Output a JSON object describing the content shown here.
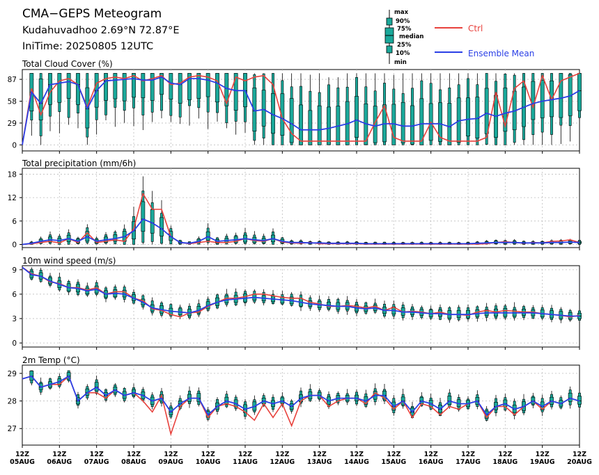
{
  "header": {
    "title": "CMA−GEPS Meteogram",
    "location": "Kudahuvadhoo 2.69°N 72.87°E",
    "init_time": "IniTime: 20250805 12UTC"
  },
  "legend": {
    "box_labels": [
      "max",
      "90%",
      "75%",
      "median",
      "25%",
      "10%",
      "min"
    ],
    "ctrl_label": "Ctrl",
    "mean_label": "Ensemble Mean",
    "ctrl_color": "#e8413c",
    "mean_color": "#2a3fe6",
    "box_color": "#1aa89a"
  },
  "time_axis": {
    "steps": 61,
    "step_hours": 3,
    "tick_labels": [
      [
        "12Z",
        "05AUG"
      ],
      [
        "12Z",
        "06AUG"
      ],
      [
        "12Z",
        "07AUG"
      ],
      [
        "12Z",
        "08AUG"
      ],
      [
        "12Z",
        "09AUG"
      ],
      [
        "12Z",
        "10AUG"
      ],
      [
        "12Z",
        "11AUG"
      ],
      [
        "12Z",
        "12AUG"
      ],
      [
        "12Z",
        "13AUG"
      ],
      [
        "12Z",
        "14AUG"
      ],
      [
        "12Z",
        "15AUG"
      ],
      [
        "12Z",
        "16AUG"
      ],
      [
        "12Z",
        "17AUG"
      ],
      [
        "12Z",
        "18AUG"
      ],
      [
        "12Z",
        "19AUG"
      ],
      [
        "12Z",
        "20AUG"
      ]
    ]
  },
  "chart_data": [
    {
      "type": "line",
      "title": "Total Cloud Cover (%)",
      "ylim": [
        -8,
        100
      ],
      "yticks": [
        0,
        29,
        58,
        87
      ],
      "grid": true,
      "x": "3-hourly steps from 20250805 12UTC to 20250820 12UTC",
      "series": [
        {
          "name": "Ctrl",
          "values": [
            0,
            75,
            40,
            70,
            85,
            88,
            80,
            50,
            82,
            88,
            90,
            88,
            92,
            85,
            88,
            92,
            80,
            82,
            90,
            92,
            90,
            85,
            55,
            90,
            85,
            90,
            92,
            80,
            35,
            15,
            5,
            5,
            5,
            5,
            5,
            5,
            5,
            5,
            30,
            52,
            10,
            5,
            5,
            5,
            30,
            10,
            5,
            5,
            5,
            5,
            10,
            70,
            25,
            75,
            85,
            50,
            92,
            60,
            85,
            90,
            95
          ]
        },
        {
          "name": "Ensemble Mean",
          "values": [
            0,
            70,
            55,
            80,
            82,
            84,
            80,
            48,
            72,
            85,
            86,
            87,
            88,
            86,
            86,
            90,
            82,
            80,
            88,
            88,
            86,
            82,
            75,
            72,
            72,
            45,
            47,
            40,
            35,
            28,
            20,
            20,
            20,
            22,
            25,
            28,
            33,
            28,
            25,
            28,
            28,
            25,
            25,
            28,
            28,
            28,
            24,
            32,
            34,
            35,
            42,
            38,
            42,
            45,
            50,
            55,
            58,
            60,
            62,
            65,
            72
          ]
        }
      ],
      "boxes_percentiles": [
        "min",
        "10%",
        "25%",
        "median",
        "75%",
        "90%",
        "max"
      ]
    },
    {
      "type": "line",
      "title": "Total precipitation (mm/6h)",
      "ylim": [
        -0.8,
        19.5
      ],
      "yticks": [
        0,
        6,
        12,
        18
      ],
      "grid": true,
      "series": [
        {
          "name": "Ctrl",
          "values": [
            0,
            0.2,
            0.5,
            0.8,
            0.4,
            1.5,
            0.5,
            3,
            0.5,
            0.8,
            1.2,
            0.8,
            4,
            13,
            9,
            9,
            2,
            0.5,
            0.2,
            0.5,
            0.8,
            0.5,
            0.5,
            0.8,
            1.5,
            1,
            0.8,
            1.5,
            0.6,
            0.4,
            0.3,
            0.5,
            0.2,
            0.2,
            0.2,
            0.2,
            0.2,
            0.1,
            0.1,
            0.1,
            0.1,
            0.1,
            0.1,
            0.1,
            0.1,
            0.1,
            0.1,
            0.1,
            0.1,
            0.1,
            0.2,
            0.5,
            0.7,
            0.5,
            0.3,
            0.5,
            0.4,
            0.8,
            0.9,
            1.2,
            0.5
          ]
        },
        {
          "name": "Ensemble Mean",
          "values": [
            0,
            0.3,
            0.8,
            1.2,
            1.0,
            1.5,
            0.8,
            2,
            0.8,
            1.2,
            1.5,
            2,
            3.5,
            6.5,
            5.5,
            4,
            2,
            0.5,
            0.3,
            0.8,
            2,
            0.8,
            1,
            1.2,
            1.5,
            1.2,
            1,
            1.5,
            0.8,
            0.5,
            0.5,
            0.4,
            0.4,
            0.3,
            0.3,
            0.3,
            0.3,
            0.2,
            0.2,
            0.2,
            0.2,
            0.2,
            0.2,
            0.2,
            0.2,
            0.2,
            0.2,
            0.2,
            0.2,
            0.3,
            0.4,
            0.5,
            0.5,
            0.5,
            0.4,
            0.4,
            0.4,
            0.5,
            0.5,
            0.6,
            0.5
          ]
        }
      ]
    },
    {
      "type": "line",
      "title": "10m wind speed (m/s)",
      "ylim": [
        -0.5,
        9.5
      ],
      "yticks": [
        0,
        3,
        6,
        9
      ],
      "grid": true,
      "series": [
        {
          "name": "Ctrl",
          "values": [
            9.3,
            8.5,
            8.2,
            7.5,
            7.3,
            6.8,
            6.8,
            6.5,
            6.8,
            6.0,
            6.3,
            6.3,
            5.5,
            5.2,
            4.2,
            4.0,
            3.5,
            3.2,
            3.7,
            3.8,
            4.5,
            5.0,
            5.5,
            5.5,
            5.7,
            6.0,
            6.0,
            5.8,
            5.6,
            5.5,
            5.5,
            5.0,
            4.8,
            4.5,
            4.5,
            4.6,
            4.5,
            4.3,
            4.5,
            4.0,
            4.4,
            3.8,
            3.9,
            3.8,
            3.6,
            3.8,
            3.5,
            3.5,
            3.4,
            3.8,
            4.0,
            3.8,
            4.0,
            3.9,
            3.8,
            3.8,
            3.6,
            3.5,
            3.4,
            3.2,
            3.4
          ]
        },
        {
          "name": "Ensemble Mean",
          "values": [
            9.3,
            8.4,
            8.2,
            7.6,
            7.2,
            6.8,
            6.7,
            6.4,
            6.6,
            6.0,
            6.1,
            6.0,
            5.5,
            5.0,
            4.3,
            4.1,
            3.9,
            3.8,
            3.7,
            4.0,
            4.6,
            5.0,
            5.3,
            5.4,
            5.5,
            5.6,
            5.5,
            5.4,
            5.3,
            5.2,
            5.0,
            4.8,
            4.7,
            4.6,
            4.5,
            4.5,
            4.3,
            4.2,
            4.3,
            4.0,
            4.0,
            3.8,
            3.8,
            3.7,
            3.6,
            3.6,
            3.5,
            3.5,
            3.5,
            3.6,
            3.7,
            3.7,
            3.7,
            3.7,
            3.7,
            3.7,
            3.6,
            3.5,
            3.4,
            3.3,
            3.3
          ]
        }
      ]
    },
    {
      "type": "line",
      "title": "2m Temp (°C)",
      "ylim": [
        26.4,
        29.3
      ],
      "yticks": [
        27,
        28,
        29
      ],
      "grid": true,
      "series": [
        {
          "name": "Ctrl",
          "values": [
            28.8,
            28.9,
            28.5,
            28.6,
            28.6,
            28.9,
            28.0,
            28.3,
            28.3,
            28.1,
            28.4,
            28.2,
            28.3,
            28.0,
            27.6,
            28.2,
            26.8,
            27.8,
            28.1,
            28.1,
            27.4,
            27.8,
            27.9,
            27.8,
            27.6,
            27.3,
            27.9,
            27.4,
            27.9,
            27.1,
            28.0,
            28.2,
            28.2,
            27.8,
            28.0,
            28.1,
            28.1,
            27.9,
            28.3,
            28.1,
            27.7,
            28.0,
            27.4,
            27.9,
            27.8,
            27.5,
            27.8,
            27.7,
            27.9,
            28.0,
            27.4,
            27.8,
            27.8,
            27.5,
            27.8,
            28.0,
            27.7,
            28.0,
            27.9,
            28.1,
            28.0
          ]
        },
        {
          "name": "Ensemble Mean",
          "values": [
            28.8,
            28.9,
            28.5,
            28.6,
            28.7,
            28.9,
            28.0,
            28.3,
            28.5,
            28.2,
            28.4,
            28.2,
            28.3,
            28.2,
            28.0,
            28.1,
            27.6,
            27.9,
            28.1,
            28.1,
            27.5,
            27.8,
            28.0,
            27.9,
            27.7,
            27.8,
            28.0,
            27.9,
            28.0,
            27.8,
            28.1,
            28.2,
            28.2,
            28.0,
            28.1,
            28.1,
            28.1,
            28.0,
            28.2,
            28.2,
            27.8,
            28.0,
            27.6,
            28.0,
            27.9,
            27.7,
            28.0,
            27.9,
            27.9,
            28.0,
            27.5,
            27.8,
            27.9,
            27.7,
            27.8,
            28.0,
            27.8,
            28.0,
            27.9,
            28.1,
            28.0
          ]
        }
      ]
    }
  ]
}
